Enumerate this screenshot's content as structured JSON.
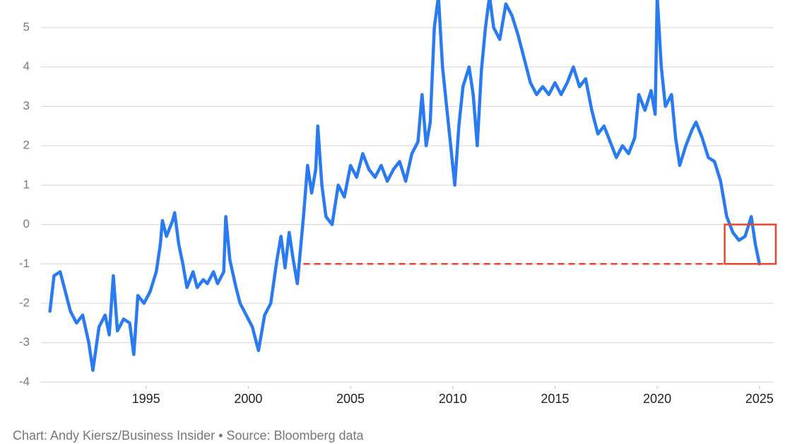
{
  "chart_data": {
    "type": "line",
    "source": "Chart: Andy Kiersz/Business Insider • Source: Bloomberg data",
    "x": [
      1990.3,
      1990.5,
      1990.8,
      1991.0,
      1991.3,
      1991.6,
      1991.9,
      1992.2,
      1992.4,
      1992.7,
      1993.0,
      1993.2,
      1993.4,
      1993.6,
      1993.9,
      1994.2,
      1994.4,
      1994.6,
      1994.9,
      1995.2,
      1995.5,
      1995.7,
      1995.8,
      1996.0,
      1996.3,
      1996.4,
      1996.6,
      1996.8,
      1997.0,
      1997.3,
      1997.5,
      1997.8,
      1998.0,
      1998.3,
      1998.5,
      1998.8,
      1998.9,
      1999.1,
      1999.4,
      1999.6,
      1999.9,
      2000.2,
      2000.5,
      2000.8,
      2001.1,
      2001.4,
      2001.6,
      2001.8,
      2002.0,
      2002.2,
      2002.4,
      2002.7,
      2002.9,
      2003.1,
      2003.3,
      2003.4,
      2003.6,
      2003.8,
      2004.1,
      2004.4,
      2004.7,
      2005.0,
      2005.3,
      2005.6,
      2005.9,
      2006.2,
      2006.5,
      2006.8,
      2007.1,
      2007.4,
      2007.7,
      2008.0,
      2008.3,
      2008.5,
      2008.7,
      2008.9,
      2009.1,
      2009.3,
      2009.5,
      2009.7,
      2009.9,
      2010.1,
      2010.3,
      2010.5,
      2010.8,
      2011.0,
      2011.2,
      2011.4,
      2011.6,
      2011.8,
      2012.0,
      2012.3,
      2012.6,
      2012.9,
      2013.2,
      2013.5,
      2013.8,
      2014.1,
      2014.4,
      2014.7,
      2015.0,
      2015.3,
      2015.6,
      2015.9,
      2016.2,
      2016.5,
      2016.8,
      2017.1,
      2017.4,
      2017.7,
      2018.0,
      2018.3,
      2018.6,
      2018.9,
      2019.1,
      2019.4,
      2019.7,
      2019.9,
      2020.0,
      2020.2,
      2020.4,
      2020.7,
      2020.9,
      2021.1,
      2021.4,
      2021.7,
      2021.9,
      2022.2,
      2022.5,
      2022.8,
      2023.1,
      2023.4,
      2023.7,
      2024.0,
      2024.3,
      2024.6,
      2024.8,
      2025.0
    ],
    "series": [
      {
        "color": "#2a7af0",
        "values": [
          -2.2,
          -1.3,
          -1.2,
          -1.6,
          -2.2,
          -2.5,
          -2.3,
          -3.0,
          -3.7,
          -2.6,
          -2.3,
          -2.8,
          -1.3,
          -2.7,
          -2.4,
          -2.5,
          -3.3,
          -1.8,
          -2.0,
          -1.7,
          -1.2,
          -0.5,
          0.1,
          -0.3,
          0.1,
          0.3,
          -0.5,
          -1.0,
          -1.6,
          -1.2,
          -1.6,
          -1.4,
          -1.5,
          -1.2,
          -1.5,
          -1.2,
          0.2,
          -0.9,
          -1.6,
          -2.0,
          -2.3,
          -2.6,
          -3.2,
          -2.3,
          -2.0,
          -0.9,
          -0.3,
          -1.1,
          -0.2,
          -0.9,
          -1.5,
          0.2,
          1.5,
          0.8,
          1.4,
          2.5,
          1.0,
          0.2,
          0.0,
          1.0,
          0.7,
          1.5,
          1.2,
          1.8,
          1.4,
          1.2,
          1.5,
          1.1,
          1.4,
          1.6,
          1.1,
          1.8,
          2.1,
          3.3,
          2.0,
          2.6,
          5.0,
          5.8,
          4.0,
          3.0,
          2.0,
          1.0,
          2.5,
          3.5,
          4.0,
          3.3,
          2.0,
          3.9,
          5.0,
          5.8,
          5.0,
          4.7,
          5.6,
          5.3,
          4.8,
          4.2,
          3.6,
          3.3,
          3.5,
          3.3,
          3.6,
          3.3,
          3.6,
          4.0,
          3.5,
          3.7,
          2.9,
          2.3,
          2.5,
          2.1,
          1.7,
          2.0,
          1.8,
          2.2,
          3.3,
          2.9,
          3.4,
          2.8,
          5.8,
          4.0,
          3.0,
          3.3,
          2.2,
          1.5,
          2.0,
          2.4,
          2.6,
          2.2,
          1.7,
          1.6,
          1.1,
          0.2,
          -0.2,
          -0.4,
          -0.3,
          0.2,
          -0.5,
          -1.0
        ]
      }
    ],
    "xlim": [
      1990,
      2025.7
    ],
    "xticks": [
      1995,
      2000,
      2005,
      2010,
      2015,
      2020,
      2025
    ],
    "ylim": [
      -4.1,
      5.7
    ],
    "yticks": [
      -4,
      -3,
      -2,
      -1,
      0,
      1,
      2,
      3,
      4,
      5
    ],
    "grid": true,
    "annotations": [
      {
        "type": "hline",
        "y": -1,
        "x": [
          2002.7,
          2025.1
        ],
        "color": "#e8472b"
      },
      {
        "type": "rect",
        "x": [
          2023.3,
          2025.8
        ],
        "y": [
          -1,
          0
        ],
        "color": "#e8472b"
      }
    ]
  }
}
